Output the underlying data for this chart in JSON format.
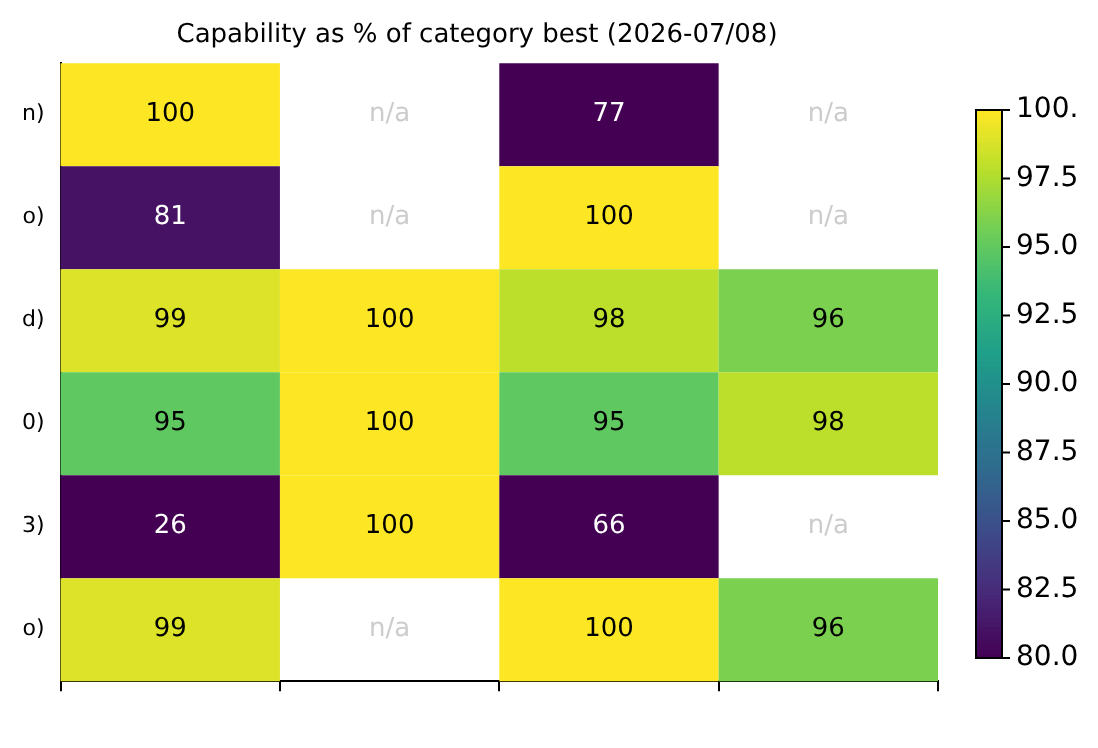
{
  "chart_data": {
    "type": "heatmap",
    "title": "Capability as % of category best (2026-07/08)",
    "categories": [
      null,
      null,
      null,
      null
    ],
    "y_categories": [
      "n)",
      "o)",
      "d)",
      "0)",
      "3)",
      "o)"
    ],
    "cells": [
      [
        100,
        null,
        77,
        null
      ],
      [
        81,
        null,
        100,
        null
      ],
      [
        99,
        100,
        98,
        96
      ],
      [
        95,
        100,
        95,
        98
      ],
      [
        26,
        100,
        66,
        null
      ],
      [
        99,
        null,
        100,
        96
      ]
    ],
    "cell_labels": [
      [
        "100",
        "n/a",
        "77",
        "n/a"
      ],
      [
        "81",
        "n/a",
        "100",
        "n/a"
      ],
      [
        "99",
        "100",
        "98",
        "96"
      ],
      [
        "95",
        "100",
        "95",
        "98"
      ],
      [
        "26",
        "100",
        "66",
        "n/a"
      ],
      [
        "99",
        "n/a",
        "100",
        "96"
      ]
    ],
    "clim": [
      80,
      100
    ],
    "cticks": [
      {
        "value": 80,
        "label": "80.0"
      },
      {
        "value": 82.5,
        "label": "82.5"
      },
      {
        "value": 85,
        "label": "85.0"
      },
      {
        "value": 87.5,
        "label": "87.5"
      },
      {
        "value": 90,
        "label": "90.0"
      },
      {
        "value": 92.5,
        "label": "92.5"
      },
      {
        "value": 95,
        "label": "95.0"
      },
      {
        "value": 97.5,
        "label": "97.5"
      },
      {
        "value": 100,
        "label": "100."
      }
    ]
  }
}
